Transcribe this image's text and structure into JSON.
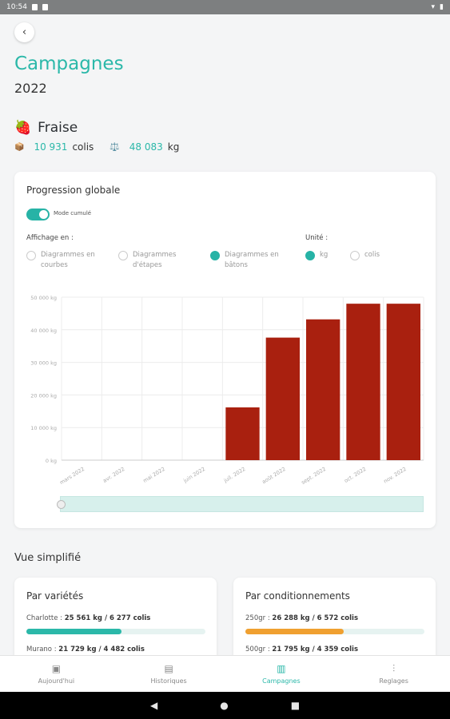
{
  "status_bar": {
    "time": "10:54"
  },
  "header": {
    "title": "Campagnes",
    "year": "2022"
  },
  "product": {
    "emoji": "🍓",
    "name": "Fraise",
    "box_icon": "📦",
    "colis_count": "10 931",
    "colis_unit": "colis",
    "weight_icon": "⚖️",
    "kg_count": "48 083",
    "kg_unit": "kg"
  },
  "progression": {
    "title": "Progression globale",
    "toggle_label": "Mode cumulé",
    "toggle_on": true,
    "affichage_label": "Affichage en :",
    "unite_label": "Unité :",
    "options": [
      "Diagrammes en courbes",
      "Diagrammes d'étapes",
      "Diagrammes en bâtons"
    ],
    "selected_option": 2,
    "units": [
      "kg",
      "colis"
    ],
    "selected_unit": 0
  },
  "chart_data": {
    "type": "bar",
    "categories": [
      "mars 2022",
      "avr. 2022",
      "mai 2022",
      "juin 2022",
      "juil. 2022",
      "août 2022",
      "sept. 2022",
      "oct. 2022",
      "nov. 2022"
    ],
    "values": [
      0,
      0,
      0,
      0,
      16200,
      37600,
      43200,
      48000,
      48000
    ],
    "y_tick_labels": [
      "0 kg",
      "10 000 kg",
      "20 000 kg",
      "30 000 kg",
      "40 000 kg",
      "50 000 kg"
    ],
    "ylim": [
      0,
      50000
    ],
    "bar_color": "#a9200f",
    "grid": true
  },
  "simplified": {
    "title": "Vue simplifié",
    "varietes": {
      "title": "Par variétés",
      "items": [
        {
          "name": "Charlotte",
          "sep": " : ",
          "value": "25 561 kg / 6 277 colis",
          "fraction": 0.53,
          "color": "#2bb8a9"
        },
        {
          "name": "Murano",
          "sep": " : ",
          "value": "21 729 kg / 4 482 colis",
          "fraction": 0.45,
          "color": "#2bb8a9"
        }
      ]
    },
    "conditionnements": {
      "title": "Par conditionnements",
      "items": [
        {
          "name": "250gr",
          "sep": " : ",
          "value": "26 288 kg / 6 572 colis",
          "fraction": 0.55,
          "color": "#f0a030"
        },
        {
          "name": "500gr",
          "sep": " : ",
          "value": "21 795 kg / 4 359 colis",
          "fraction": 0.45,
          "color": "#f0a030"
        }
      ]
    }
  },
  "tabs": [
    {
      "label": "Aujourd'hui",
      "icon": "calendar-today-icon",
      "active": false
    },
    {
      "label": "Historiques",
      "icon": "calendar-history-icon",
      "active": false
    },
    {
      "label": "Campagnes",
      "icon": "bar-chart-icon",
      "active": true
    },
    {
      "label": "Reglages",
      "icon": "sliders-icon",
      "active": false
    }
  ]
}
